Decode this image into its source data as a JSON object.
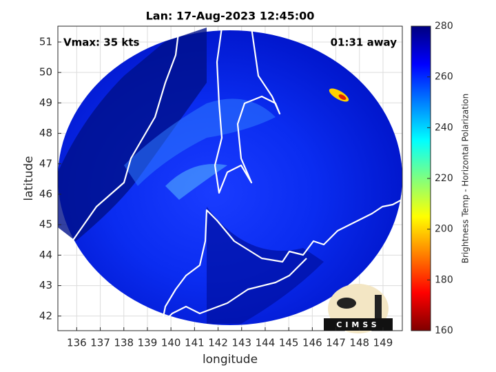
{
  "map": {
    "title": "Lan: 17-Aug-2023 12:45:00",
    "annotations": {
      "left": "Vmax: 35 kts",
      "right": "01:31 away"
    },
    "xlabel": "longitude",
    "ylabel": "latitude",
    "xlim": [
      135.2,
      149.82
    ],
    "ylim": [
      41.52,
      51.52
    ],
    "xticks": [
      136,
      137,
      138,
      139,
      140,
      141,
      142,
      143,
      144,
      145,
      146,
      147,
      148,
      149
    ],
    "yticks": [
      42,
      43,
      44,
      45,
      46,
      47,
      48,
      49,
      50,
      51
    ],
    "grid": true
  },
  "colorbar": {
    "label": "Brightness Temp - Horizontal Polarization",
    "lim": [
      160,
      280
    ],
    "ticks": [
      160,
      180,
      200,
      220,
      240,
      260,
      280
    ]
  },
  "logo": "CIMSS"
}
